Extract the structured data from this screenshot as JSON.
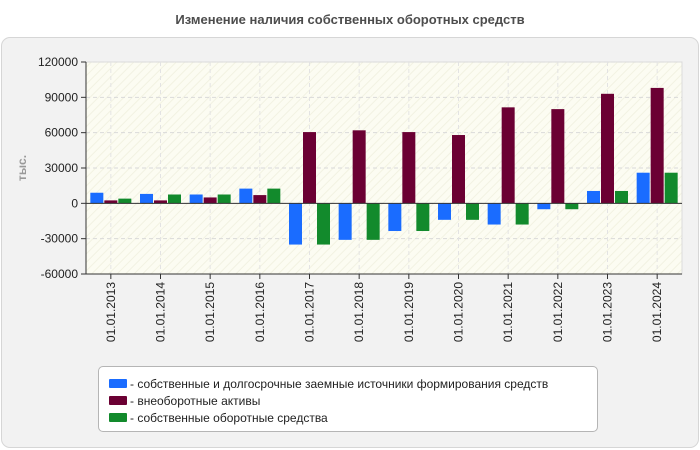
{
  "chart_data": {
    "type": "bar",
    "title": "Изменение наличия собственных оборотных средств",
    "xlabel": "",
    "ylabel": "тыс.",
    "ylim": [
      -60000,
      120000
    ],
    "yticks": [
      120000,
      90000,
      60000,
      30000,
      0,
      -30000,
      -60000
    ],
    "ytick_labels": [
      "120000",
      "90000",
      "60000",
      "30000",
      "0",
      "-30000",
      "-60000"
    ],
    "grid": true,
    "legend_position": "bottom",
    "categories": [
      "01.01.2013",
      "01.01.2014",
      "01.01.2015",
      "01.01.2016",
      "01.01.2017",
      "01.01.2018",
      "01.01.2019",
      "01.01.2020",
      "01.01.2021",
      "01.01.2022",
      "01.01.2023",
      "01.01.2024"
    ],
    "series": [
      {
        "name": "- собственные и долгосрочные заемные источники формирования средств",
        "color": "#1a6cff",
        "values": [
          9000,
          8000,
          7500,
          12500,
          -35000,
          -31000,
          -23500,
          -14000,
          -18000,
          -5000,
          10500,
          26000
        ]
      },
      {
        "name": "- внеоборотные активы",
        "color": "#6b0033",
        "values": [
          2500,
          2500,
          5000,
          7000,
          60500,
          62000,
          60500,
          58000,
          81500,
          80000,
          93000,
          98000
        ]
      },
      {
        "name": "- собственные оборотные средства",
        "color": "#128a2c",
        "values": [
          4000,
          7500,
          7500,
          12500,
          -35000,
          -31000,
          -23500,
          -14000,
          -18000,
          -5000,
          10500,
          26000
        ]
      }
    ]
  }
}
